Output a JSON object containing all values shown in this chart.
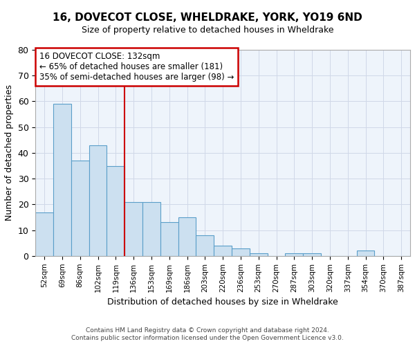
{
  "title1": "16, DOVECOT CLOSE, WHELDRAKE, YORK, YO19 6ND",
  "title2": "Size of property relative to detached houses in Wheldrake",
  "xlabel": "Distribution of detached houses by size in Wheldrake",
  "ylabel": "Number of detached properties",
  "bar_labels": [
    "52sqm",
    "69sqm",
    "86sqm",
    "102sqm",
    "119sqm",
    "136sqm",
    "153sqm",
    "169sqm",
    "186sqm",
    "203sqm",
    "220sqm",
    "236sqm",
    "253sqm",
    "270sqm",
    "287sqm",
    "303sqm",
    "320sqm",
    "337sqm",
    "354sqm",
    "370sqm",
    "387sqm"
  ],
  "bar_values": [
    17,
    59,
    37,
    43,
    35,
    21,
    21,
    13,
    15,
    8,
    4,
    3,
    1,
    0,
    1,
    1,
    0,
    0,
    2,
    0,
    0
  ],
  "bar_color": "#cce0f0",
  "bar_edge_color": "#5a9ec9",
  "vline_x": 4.5,
  "vline_color": "#cc0000",
  "annotation_line1": "16 DOVECOT CLOSE: 132sqm",
  "annotation_line2": "← 65% of detached houses are smaller (181)",
  "annotation_line3": "35% of semi-detached houses are larger (98) →",
  "annotation_box_color": "#cc0000",
  "ylim": [
    0,
    80
  ],
  "yticks": [
    0,
    10,
    20,
    30,
    40,
    50,
    60,
    70,
    80
  ],
  "grid_color": "#d0d8e8",
  "bg_color": "#eef4fb",
  "title1_fontsize": 11,
  "title2_fontsize": 9,
  "footnote1": "Contains HM Land Registry data © Crown copyright and database right 2024.",
  "footnote2": "Contains public sector information licensed under the Open Government Licence v3.0."
}
